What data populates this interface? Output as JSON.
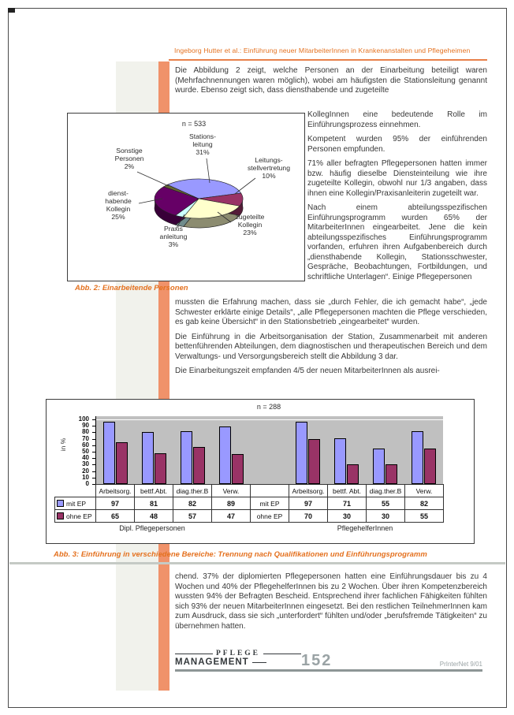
{
  "page": {
    "running_header": "Ingeborg Hutter et al.: Einführung neuer MitarbeiterInnen in Krankenanstalten und Pflegeheimen",
    "accent_color": "#e4711f",
    "margin_bar_color": "#f0926a"
  },
  "text": {
    "para1a": "Die Abbildung 2 zeigt, welche Personen an der Einarbeitung beteiligt waren (Mehrfachnennungen waren möglich), wobei am häufigsten die Stationsleitung genannt wurde. Ebenso zeigt sich, dass diensthabende und zugeteilte",
    "para1b": "KollegInnen eine bedeutende Rolle im Einführungsprozess einnehmen.",
    "para2": "Kompetent wurden 95% der einführenden Personen empfunden.",
    "para3": "71% aller befragten Pflegepersonen hatten immer bzw. häufig dieselbe Diensteinteilung wie ihre zugeteilte Kollegin, obwohl nur 1/3 angaben, dass ihnen eine Kollegin/Praxisanleiterin zugeteilt war.",
    "para4a": "Nach einem abteilungsspezifischen Einführungsprogramm wurden 65% der MitarbeiterInnen eingearbeitet. Jene die kein abteilungsspezifisches Einführungsprogramm vorfanden, erfuhren ihren Aufgabenbereich durch „diensthabende Kollegin, Stationsschwester, Gespräche, Beobachtungen, Fortbildungen, und schriftliche Unterlagen“. Einige Pflegepersonen",
    "para4b": "mussten die Erfahrung machen, dass sie „durch Fehler, die ich gemacht habe“, „jede Schwester erklärte einige Details“, „alle Pflegepersonen machten die Pflege verschieden, es gab keine Übersicht“ in den Stationsbetrieb „eingearbeitet“ wurden.",
    "para5": "Die Einführung in die Arbeitsorganisation der Station, Zusammenarbeit mit anderen bettenführenden Abteilungen, dem diagnostischen und therapeutischen Bereich und dem Verwaltungs- und Versorgungsbereich stellt die Abbildung 3 dar.",
    "para6": "Die Einarbeitungszeit empfanden 4/5 der neuen MitarbeiterInnen als ausrei-",
    "para7": "chend. 37% der diplomierten Pflegepersonen hatten eine Einführungsdauer bis zu 4 Wochen und 40% der PflegehelferInnen bis zu 2 Wochen. Über ihren Kompetenzbereich wussten 94% der Befragten Bescheid. Entsprechend ihrer fachlichen Fähigkeiten fühlten sich 93% der neuen MitarbeiterInnen eingesetzt. Bei den restlichen TeilnehmerInnen kam zum Ausdruck, dass sie sich „unterfordert“ fühlten und/oder „berufsfremde Tätigkeiten“ zu übernehmen hatten."
  },
  "fig2": {
    "n_label": "n = 533",
    "caption": "Abb. 2: Einarbeitende Personen",
    "labels": [
      "Stations-\nleitung\n31%",
      "Leitungs-\nstellvertretung\n10%",
      "zugeteilte\nKollegin\n23%",
      "Praxis\nanleitung\n3%",
      "dienst-\nhabende\nKollegin\n25%",
      "Sonstige\nPersonen\n2%"
    ]
  },
  "fig3": {
    "n_label": "n = 288",
    "ylabel": "in %",
    "caption": "Abb. 3: Einführung in verschiedene Bereiche: Trennung nach Qualifikationen und Einführungsprogramm",
    "group_left": "Dipl. Pflegepersonen",
    "group_right": "PflegehelferInnen"
  },
  "footer": {
    "journal_top": "PFLEGE",
    "journal_bottom": "MANAGEMENT",
    "page_number": "152",
    "issue": "PrInterNet 9/01"
  },
  "chart_data": [
    {
      "type": "pie",
      "title": "n = 533",
      "labels": [
        "Stationsleitung",
        "Leitungsstellvertretung",
        "zugeteilte Kollegin",
        "Praxisanleitung",
        "diensthabende Kollegin",
        "Sonstige Personen"
      ],
      "values": [
        31,
        10,
        23,
        3,
        25,
        2
      ],
      "unit": "%",
      "colors": [
        "#9999ff",
        "#993366",
        "#ffffcc",
        "#ccffff",
        "#660066",
        "#666633"
      ],
      "style": "3d-pie",
      "legend_position": "callout-labels"
    },
    {
      "type": "bar",
      "title": "n = 288",
      "ylabel": "in %",
      "ylim": [
        0,
        100
      ],
      "ytick_step": 10,
      "plot_bg": "#c0c0c0",
      "grid": false,
      "legend_position": "table-rows",
      "groups": [
        {
          "label": "Dipl. Pflegepersonen",
          "categories": [
            "Arbeitsorg.",
            "bettf.Abt.",
            "diag.ther.B",
            "Verw."
          ]
        },
        {
          "label": "PflegehelferInnen",
          "categories": [
            "Arbeitsorg.",
            "bettf. Abt.",
            "diag.ther.B",
            "Verw."
          ]
        }
      ],
      "series": [
        {
          "name": "mit EP",
          "color": "#9999ff",
          "values": [
            [
              97,
              81,
              82,
              89
            ],
            [
              97,
              71,
              55,
              82
            ]
          ]
        },
        {
          "name": "ohne EP",
          "color": "#993366",
          "values": [
            [
              65,
              48,
              57,
              47
            ],
            [
              70,
              30,
              30,
              55
            ]
          ]
        }
      ]
    }
  ]
}
